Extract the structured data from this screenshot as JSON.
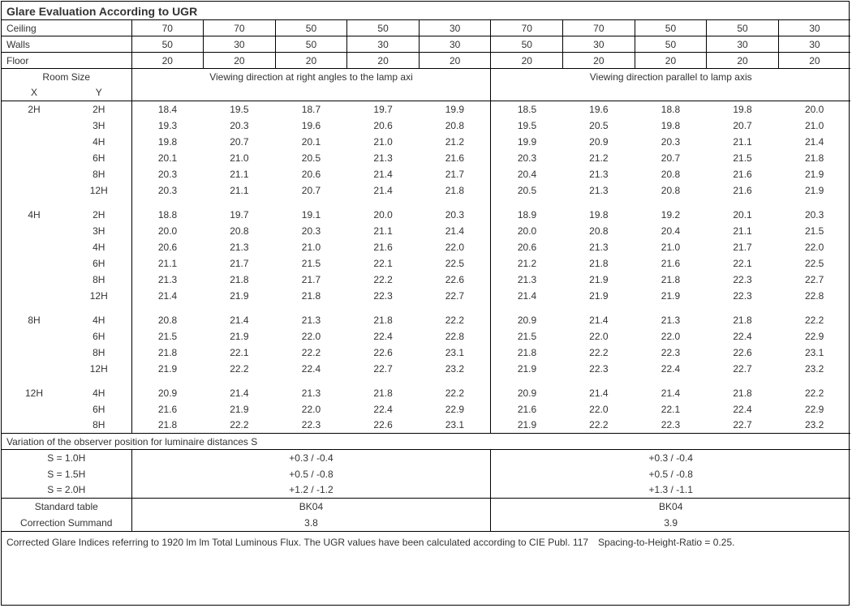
{
  "title": "Glare Evaluation According to UGR",
  "hdrRows": [
    {
      "label": "Ceiling",
      "vals": [
        "70",
        "70",
        "50",
        "50",
        "30",
        "70",
        "70",
        "50",
        "50",
        "30"
      ]
    },
    {
      "label": "Walls",
      "vals": [
        "50",
        "30",
        "50",
        "30",
        "30",
        "50",
        "30",
        "50",
        "30",
        "30"
      ]
    },
    {
      "label": "Floor",
      "vals": [
        "20",
        "20",
        "20",
        "20",
        "20",
        "20",
        "20",
        "20",
        "20",
        "20"
      ]
    }
  ],
  "roomSizeLabel": "Room Size",
  "xLabel": "X",
  "yLabel": "Y",
  "leftHeading": "Viewing direction at right angles to the lamp axi",
  "rightHeading": "Viewing direction parallel to lamp axis",
  "groups": [
    {
      "x": "2H",
      "rows": [
        {
          "y": "2H",
          "l": [
            "18.4",
            "19.5",
            "18.7",
            "19.7",
            "19.9"
          ],
          "r": [
            "18.5",
            "19.6",
            "18.8",
            "19.8",
            "20.0"
          ]
        },
        {
          "y": "3H",
          "l": [
            "19.3",
            "20.3",
            "19.6",
            "20.6",
            "20.8"
          ],
          "r": [
            "19.5",
            "20.5",
            "19.8",
            "20.7",
            "21.0"
          ]
        },
        {
          "y": "4H",
          "l": [
            "19.8",
            "20.7",
            "20.1",
            "21.0",
            "21.2"
          ],
          "r": [
            "19.9",
            "20.9",
            "20.3",
            "21.1",
            "21.4"
          ]
        },
        {
          "y": "6H",
          "l": [
            "20.1",
            "21.0",
            "20.5",
            "21.3",
            "21.6"
          ],
          "r": [
            "20.3",
            "21.2",
            "20.7",
            "21.5",
            "21.8"
          ]
        },
        {
          "y": "8H",
          "l": [
            "20.3",
            "21.1",
            "20.6",
            "21.4",
            "21.7"
          ],
          "r": [
            "20.4",
            "21.3",
            "20.8",
            "21.6",
            "21.9"
          ]
        },
        {
          "y": "12H",
          "l": [
            "20.3",
            "21.1",
            "20.7",
            "21.4",
            "21.8"
          ],
          "r": [
            "20.5",
            "21.3",
            "20.8",
            "21.6",
            "21.9"
          ]
        }
      ]
    },
    {
      "x": "4H",
      "rows": [
        {
          "y": "2H",
          "l": [
            "18.8",
            "19.7",
            "19.1",
            "20.0",
            "20.3"
          ],
          "r": [
            "18.9",
            "19.8",
            "19.2",
            "20.1",
            "20.3"
          ]
        },
        {
          "y": "3H",
          "l": [
            "20.0",
            "20.8",
            "20.3",
            "21.1",
            "21.4"
          ],
          "r": [
            "20.0",
            "20.8",
            "20.4",
            "21.1",
            "21.5"
          ]
        },
        {
          "y": "4H",
          "l": [
            "20.6",
            "21.3",
            "21.0",
            "21.6",
            "22.0"
          ],
          "r": [
            "20.6",
            "21.3",
            "21.0",
            "21.7",
            "22.0"
          ]
        },
        {
          "y": "6H",
          "l": [
            "21.1",
            "21.7",
            "21.5",
            "22.1",
            "22.5"
          ],
          "r": [
            "21.2",
            "21.8",
            "21.6",
            "22.1",
            "22.5"
          ]
        },
        {
          "y": "8H",
          "l": [
            "21.3",
            "21.8",
            "21.7",
            "22.2",
            "22.6"
          ],
          "r": [
            "21.3",
            "21.9",
            "21.8",
            "22.3",
            "22.7"
          ]
        },
        {
          "y": "12H",
          "l": [
            "21.4",
            "21.9",
            "21.8",
            "22.3",
            "22.7"
          ],
          "r": [
            "21.4",
            "21.9",
            "21.9",
            "22.3",
            "22.8"
          ]
        }
      ]
    },
    {
      "x": "8H",
      "rows": [
        {
          "y": "4H",
          "l": [
            "20.8",
            "21.4",
            "21.3",
            "21.8",
            "22.2"
          ],
          "r": [
            "20.9",
            "21.4",
            "21.3",
            "21.8",
            "22.2"
          ]
        },
        {
          "y": "6H",
          "l": [
            "21.5",
            "21.9",
            "22.0",
            "22.4",
            "22.8"
          ],
          "r": [
            "21.5",
            "22.0",
            "22.0",
            "22.4",
            "22.9"
          ]
        },
        {
          "y": "8H",
          "l": [
            "21.8",
            "22.1",
            "22.2",
            "22.6",
            "23.1"
          ],
          "r": [
            "21.8",
            "22.2",
            "22.3",
            "22.6",
            "23.1"
          ]
        },
        {
          "y": "12H",
          "l": [
            "21.9",
            "22.2",
            "22.4",
            "22.7",
            "23.2"
          ],
          "r": [
            "21.9",
            "22.3",
            "22.4",
            "22.7",
            "23.2"
          ]
        }
      ]
    },
    {
      "x": "12H",
      "rows": [
        {
          "y": "4H",
          "l": [
            "20.9",
            "21.4",
            "21.3",
            "21.8",
            "22.2"
          ],
          "r": [
            "20.9",
            "21.4",
            "21.4",
            "21.8",
            "22.2"
          ]
        },
        {
          "y": "6H",
          "l": [
            "21.6",
            "21.9",
            "22.0",
            "22.4",
            "22.9"
          ],
          "r": [
            "21.6",
            "22.0",
            "22.1",
            "22.4",
            "22.9"
          ]
        },
        {
          "y": "8H",
          "l": [
            "21.8",
            "22.2",
            "22.3",
            "22.6",
            "23.1"
          ],
          "r": [
            "21.9",
            "22.2",
            "22.3",
            "22.7",
            "23.2"
          ]
        }
      ]
    }
  ],
  "variationTitle": "Variation of the observer position for luminaire distances S",
  "variationRows": [
    {
      "label": "S = 1.0H",
      "l": "+0.3 / -0.4",
      "r": "+0.3 / -0.4"
    },
    {
      "label": "S = 1.5H",
      "l": "+0.5 / -0.8",
      "r": "+0.5 / -0.8"
    },
    {
      "label": "S = 2.0H",
      "l": "+1.2 / -1.2",
      "r": "+1.3 / -1.1"
    }
  ],
  "stdTableLabel": "Standard table",
  "stdTableL": "BK04",
  "stdTableR": "BK04",
  "corrLabel": "Correction Summand",
  "corrL": "3.8",
  "corrR": "3.9",
  "footer": "Corrected Glare Indices referring to 1920 lm lm Total Luminous Flux. The UGR values have been calculated according to CIE Publ. 117 Spacing-to-Height-Ratio = 0.25."
}
